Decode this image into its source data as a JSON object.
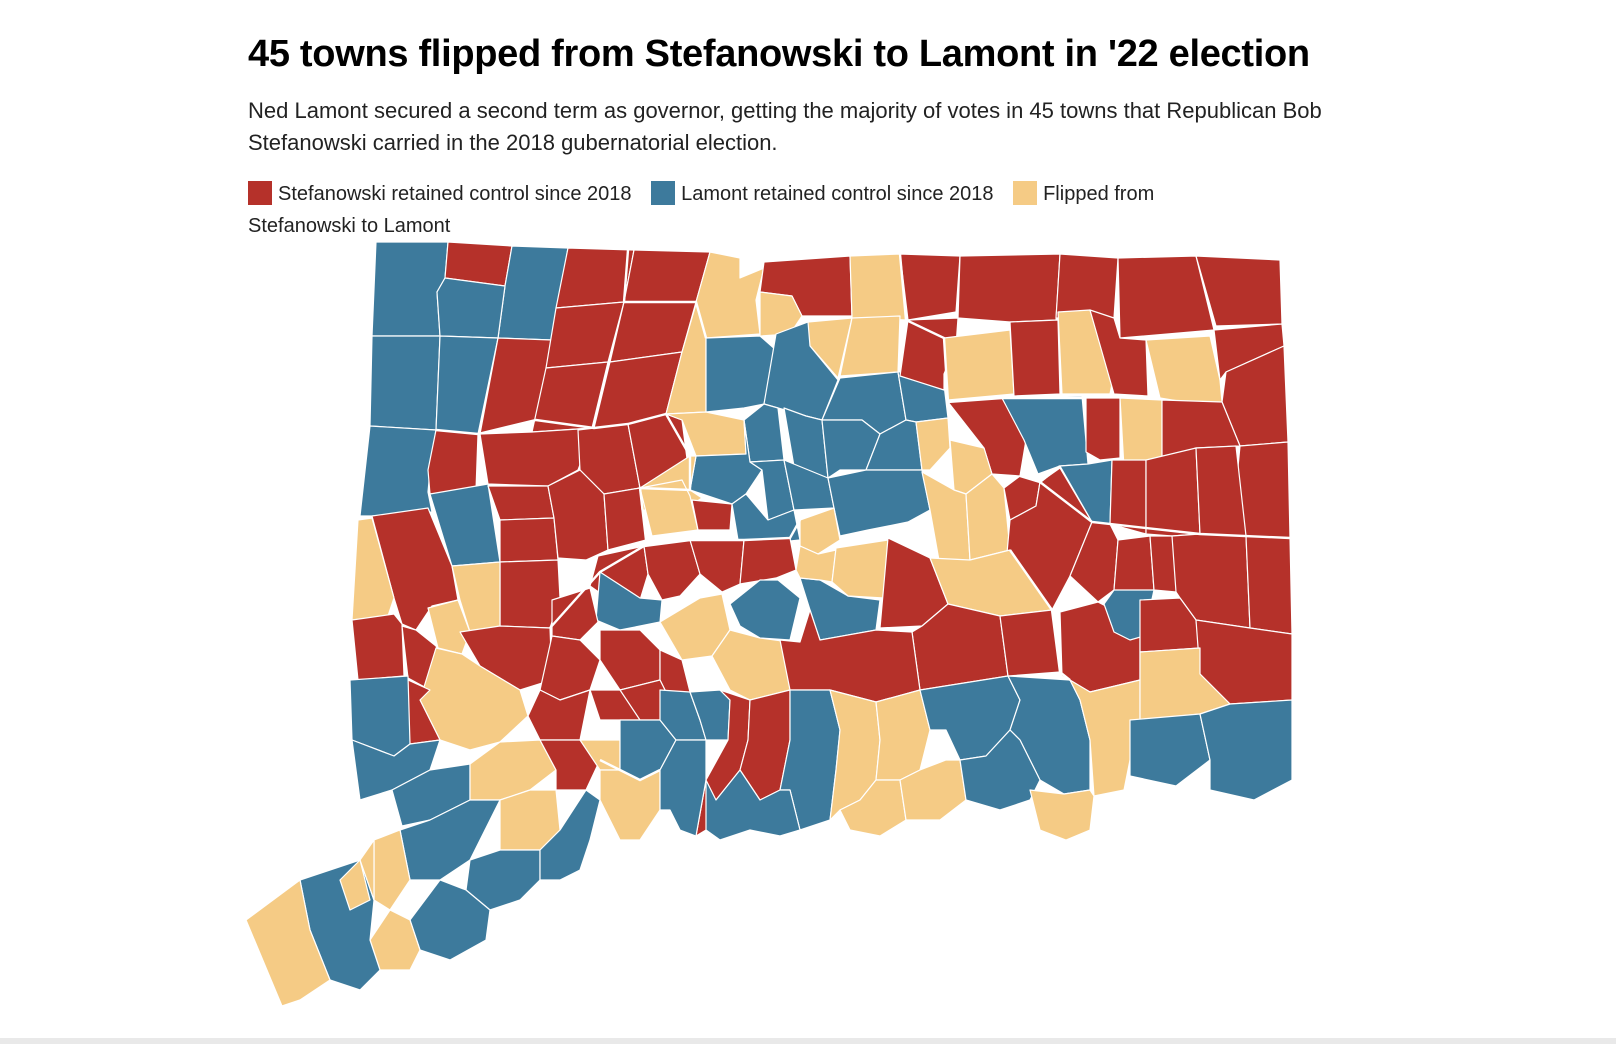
{
  "headline": "45 towns flipped from Stefanowski to Lamont in '22 election",
  "dek": "Ned Lamont secured a second term as governor, getting the majority of votes in 45 towns that Republican Bob Stefanowski carried in the 2018 gubernatorial election.",
  "legend": [
    {
      "key": "R",
      "label": "Stefanowski retained control since 2018",
      "color": "#b5312a"
    },
    {
      "key": "B",
      "label": "Lamont retained control since 2018",
      "color": "#3d7a9c"
    },
    {
      "key": "Y",
      "label": "Flipped from Stefanowski to Lamont",
      "color": "#f5cb85"
    }
  ],
  "map": {
    "categories": {
      "R": "Stefanowski retained control since 2018",
      "B": "Lamont retained control since 2018",
      "Y": "Flipped from Stefanowski to Lamont"
    },
    "colors": {
      "R": "#b5312a",
      "B": "#3d7a9c",
      "Y": "#f5cb85"
    },
    "flipped_town_count": 45
  }
}
